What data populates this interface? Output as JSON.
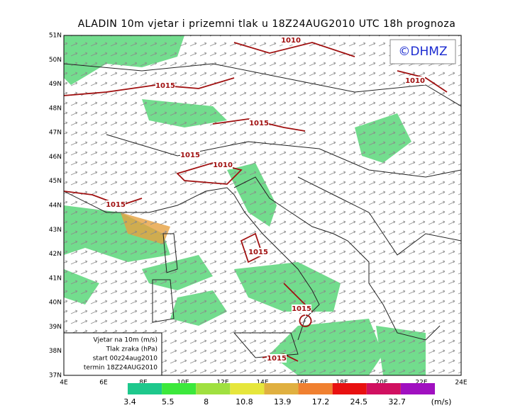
{
  "title": "ALADIN 10m vjetar i prizemni tlak u 18Z24AUG2010 UTC 18h prognoza",
  "logo": "©DHMZ",
  "lat_labels": [
    "51N",
    "50N",
    "49N",
    "48N",
    "47N",
    "46N",
    "45N",
    "44N",
    "43N",
    "42N",
    "41N",
    "40N",
    "39N",
    "38N",
    "37N"
  ],
  "lon_labels": [
    "4E",
    "6E",
    "8E",
    "10E",
    "12E",
    "14E",
    "16E",
    "18E",
    "20E",
    "22E",
    "24E"
  ],
  "isobar_labels": [
    "1010",
    "1015",
    "1010",
    "1015",
    "1015",
    "1010",
    "1015",
    "1015",
    "1015",
    "1015"
  ],
  "legend_lines": [
    "Vjetar na 10m (m/s)",
    "Tlak zraka (hPa)",
    "start 00z24aug2010",
    "termin 18Z24AUG2010"
  ],
  "colorbar": {
    "values": [
      3.4,
      5.5,
      8,
      10.8,
      13.9,
      17.2,
      24.5,
      32.7
    ],
    "colors": [
      "#1ec88c",
      "#3ce83c",
      "#a0e040",
      "#e6e63c",
      "#e0b040",
      "#f08030",
      "#e81010",
      "#d01060",
      "#a010c0"
    ],
    "unit": "(m/s)"
  }
}
